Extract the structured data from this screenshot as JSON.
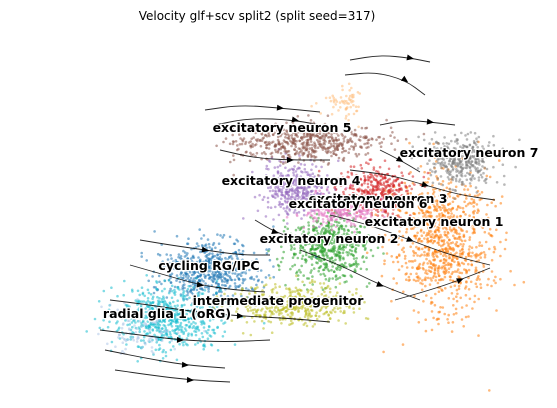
{
  "chart_data": {
    "type": "scatter",
    "title": "Velocity glf+scv split2 (split seed=317)",
    "xlabel": "",
    "ylabel": "",
    "axes_visible": false,
    "grid": false,
    "legend": "on data",
    "overlay": "velocity streamlines with arrows",
    "clusters": [
      {
        "label": "excitatory neuron 1",
        "color": "#ff7f0e",
        "center": [
          442,
          240
        ],
        "spread": [
          55,
          78
        ],
        "n": 900,
        "label_pos": [
          434,
          226
        ]
      },
      {
        "label": "excitatory neuron 2",
        "color": "#2ca02c",
        "center": [
          328,
          248
        ],
        "spread": [
          45,
          36
        ],
        "n": 520,
        "label_pos": [
          329,
          243
        ]
      },
      {
        "label": "excitatory neuron 3",
        "color": "#d62728",
        "center": [
          376,
          190
        ],
        "spread": [
          38,
          28
        ],
        "n": 380,
        "label_pos": [
          378,
          203
        ]
      },
      {
        "label": "excitatory neuron 4",
        "color": "#9467bd",
        "center": [
          295,
          190
        ],
        "spread": [
          34,
          30
        ],
        "n": 360,
        "label_pos": [
          291,
          185
        ]
      },
      {
        "label": "excitatory neuron 5",
        "color": "#8c564b",
        "center": [
          305,
          143
        ],
        "spread": [
          80,
          20
        ],
        "n": 520,
        "label_pos": [
          282,
          132
        ]
      },
      {
        "label": "excitatory neuron 6",
        "color": "#e377c2",
        "center": [
          340,
          210
        ],
        "spread": [
          40,
          18
        ],
        "n": 260,
        "label_pos": [
          358,
          208
        ]
      },
      {
        "label": "excitatory neuron 7",
        "color": "#7f7f7f",
        "center": [
          462,
          160
        ],
        "spread": [
          40,
          26
        ],
        "n": 360,
        "label_pos": [
          469,
          157
        ]
      },
      {
        "label": "cycling RG/IPC",
        "color": "#1f77b4",
        "center": [
          210,
          270
        ],
        "spread": [
          55,
          32
        ],
        "n": 560,
        "label_pos": [
          209,
          270
        ]
      },
      {
        "label": "intermediate progenitor",
        "color": "#bcbd22",
        "center": [
          290,
          305
        ],
        "spread": [
          70,
          22
        ],
        "n": 420,
        "label_pos": [
          278,
          305
        ]
      },
      {
        "label": "radial glia 1 (oRG)",
        "color": "#17becf",
        "center": [
          168,
          318
        ],
        "spread": [
          60,
          34
        ],
        "n": 620,
        "label_pos": [
          167,
          318
        ]
      },
      {
        "label": "",
        "color": "#ffbb78",
        "center": [
          345,
          100
        ],
        "spread": [
          25,
          18
        ],
        "n": 60
      },
      {
        "label": "",
        "color": "#aec7e8",
        "center": [
          140,
          330
        ],
        "spread": [
          40,
          30
        ],
        "n": 90
      }
    ]
  }
}
